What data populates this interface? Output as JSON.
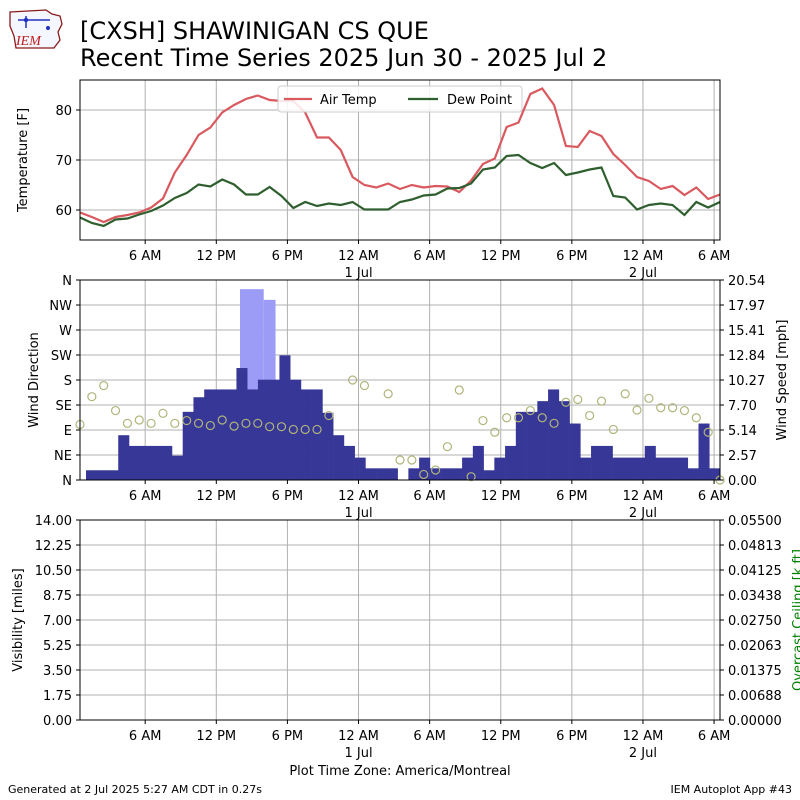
{
  "header": {
    "title_line1": "[CXSH] SHAWINIGAN CS  QUE",
    "title_line2": "Recent Time Series 2025 Jun 30 - 2025 Jul 2",
    "logo_text": "IEM"
  },
  "footer": {
    "left": "Generated at 2 Jul 2025 5:27 AM CDT in 0.27s",
    "right": "IEM Autoplot App #43",
    "timezone": "Plot Time Zone: America/Montreal"
  },
  "colors": {
    "air_temp": "#d9595f",
    "dew_point": "#2f5f2f",
    "wind_speed": "#373797",
    "gust": "#9c9cf6",
    "wind_dir": "#b0b47a",
    "ceiling_label": "#008000",
    "grid": "#b0b0b0"
  },
  "chart_data": [
    {
      "type": "line",
      "ylabel": "Temperature [F]",
      "ylim": [
        54,
        86
      ],
      "yticks": [
        60,
        70,
        80
      ],
      "x_unit": "hours since 2025-06-30 00:00 local",
      "xlim": [
        0.5,
        54.5
      ],
      "x_tick_hours": [
        6,
        12,
        18,
        24,
        30,
        36,
        42,
        48,
        54
      ],
      "x_tick_labels": [
        "6 AM",
        "12 PM",
        "6 PM",
        "12 AM",
        "6 AM",
        "12 PM",
        "6 PM",
        "12 AM",
        "6 AM"
      ],
      "date_labels": [
        {
          "hour": 24,
          "label": "1 Jul"
        },
        {
          "hour": 48,
          "label": "2 Jul"
        }
      ],
      "legend_placement": "top-center",
      "grid": true,
      "series": [
        {
          "name": "Air Temp",
          "points": [
            [
              0.5,
              59.5
            ],
            [
              1.5,
              58.6
            ],
            [
              2.5,
              57.6
            ],
            [
              3.5,
              58.6
            ],
            [
              4.5,
              59
            ],
            [
              5.5,
              59.5
            ],
            [
              6.5,
              60.5
            ],
            [
              7.5,
              62.3
            ],
            [
              8.5,
              67.5
            ],
            [
              9.5,
              71
            ],
            [
              10.5,
              75
            ],
            [
              11.5,
              76.5
            ],
            [
              12.5,
              79.5
            ],
            [
              13.5,
              81
            ],
            [
              14.5,
              82.2
            ],
            [
              15.5,
              82.9
            ],
            [
              16.5,
              82
            ],
            [
              17.5,
              81.8
            ],
            [
              18.5,
              81.8
            ],
            [
              19.5,
              79.5
            ],
            [
              20.5,
              74.5
            ],
            [
              21.5,
              74.5
            ],
            [
              22.5,
              72
            ],
            [
              23.5,
              66.6
            ],
            [
              24.5,
              65
            ],
            [
              25.5,
              64.5
            ],
            [
              26.5,
              65.3
            ],
            [
              27.5,
              64.2
            ],
            [
              28.5,
              65
            ],
            [
              29.5,
              64.5
            ],
            [
              30.5,
              64.8
            ],
            [
              31.5,
              64.7
            ],
            [
              32.5,
              63.6
            ],
            [
              33.5,
              65.9
            ],
            [
              34.5,
              69.2
            ],
            [
              35.5,
              70.3
            ],
            [
              36.5,
              76.6
            ],
            [
              37.5,
              77.5
            ],
            [
              38.5,
              83.2
            ],
            [
              39.5,
              84.3
            ],
            [
              40.5,
              81
            ],
            [
              41.5,
              72.8
            ],
            [
              42.5,
              72.6
            ],
            [
              43.5,
              75.8
            ],
            [
              44.5,
              74.8
            ],
            [
              45.5,
              71.2
            ],
            [
              46.5,
              69
            ],
            [
              47.5,
              66.6
            ],
            [
              48.5,
              65.8
            ],
            [
              49.5,
              64.2
            ],
            [
              50.5,
              64.8
            ],
            [
              51.5,
              63
            ],
            [
              52.5,
              64.5
            ],
            [
              53.5,
              62.2
            ],
            [
              54.5,
              63.1
            ]
          ]
        },
        {
          "name": "Dew Point",
          "points": [
            [
              0.5,
              58.5
            ],
            [
              1.5,
              57.4
            ],
            [
              2.5,
              56.8
            ],
            [
              3.5,
              58.1
            ],
            [
              4.5,
              58.3
            ],
            [
              5.5,
              59.1
            ],
            [
              6.5,
              59.8
            ],
            [
              7.5,
              60.9
            ],
            [
              8.5,
              62.4
            ],
            [
              9.5,
              63.4
            ],
            [
              10.5,
              65.1
            ],
            [
              11.5,
              64.7
            ],
            [
              12.5,
              66.1
            ],
            [
              13.5,
              65.1
            ],
            [
              14.5,
              63.1
            ],
            [
              15.5,
              63.1
            ],
            [
              16.5,
              64.6
            ],
            [
              17.5,
              62.8
            ],
            [
              18.5,
              60.4
            ],
            [
              19.5,
              61.6
            ],
            [
              20.5,
              60.8
            ],
            [
              21.5,
              61.3
            ],
            [
              22.5,
              61
            ],
            [
              23.5,
              61.6
            ],
            [
              24.5,
              60.1
            ],
            [
              25.5,
              60.1
            ],
            [
              26.5,
              60.1
            ],
            [
              27.5,
              61.6
            ],
            [
              28.5,
              62.1
            ],
            [
              29.5,
              62.9
            ],
            [
              30.5,
              63.1
            ],
            [
              31.5,
              64.3
            ],
            [
              32.5,
              64.4
            ],
            [
              33.5,
              65.3
            ],
            [
              34.5,
              68.1
            ],
            [
              35.5,
              68.5
            ],
            [
              36.5,
              70.8
            ],
            [
              37.5,
              71
            ],
            [
              38.5,
              69.4
            ],
            [
              39.5,
              68.4
            ],
            [
              40.5,
              69.4
            ],
            [
              41.5,
              67
            ],
            [
              42.5,
              67.5
            ],
            [
              43.5,
              68.1
            ],
            [
              44.5,
              68.5
            ],
            [
              45.5,
              62.8
            ],
            [
              46.5,
              62.5
            ],
            [
              47.5,
              60.1
            ],
            [
              48.5,
              61
            ],
            [
              49.5,
              61.3
            ],
            [
              50.5,
              61
            ],
            [
              51.5,
              59
            ],
            [
              52.5,
              61.6
            ],
            [
              53.5,
              60.5
            ],
            [
              54.5,
              61.6
            ]
          ]
        }
      ]
    },
    {
      "type": "bar",
      "ylabel": "Wind Direction",
      "y2label": "Wind Speed [mph]",
      "dir_ticks": [
        "N",
        "NE",
        "E",
        "SE",
        "S",
        "SW",
        "W",
        "NW",
        "N"
      ],
      "dir_ylim": [
        0,
        360
      ],
      "speed_ylim": [
        0,
        20.54
      ],
      "speed_ticks": [
        "0.00",
        "2.57",
        "5.14",
        "7.70",
        "10.27",
        "12.84",
        "15.41",
        "17.97",
        "20.54"
      ],
      "x_unit": "hours since 2025-06-30 00:00 local",
      "xlim": [
        0.5,
        54.5
      ],
      "x_tick_hours": [
        6,
        12,
        18,
        24,
        30,
        36,
        42,
        48,
        54
      ],
      "x_tick_labels": [
        "6 AM",
        "12 PM",
        "6 PM",
        "12 AM",
        "6 AM",
        "12 PM",
        "6 PM",
        "12 AM",
        "6 AM"
      ],
      "date_labels": [
        {
          "hour": 24,
          "label": "1 Jul"
        },
        {
          "hour": 48,
          "label": "2 Jul"
        }
      ],
      "grid": true,
      "series": [
        {
          "name": "Wind Speed",
          "values_mph": [
            1.0,
            1.0,
            1.0,
            4.6,
            3.5,
            3.5,
            3.5,
            3.5,
            2.5,
            7.0,
            8.5,
            9.3,
            9.3,
            9.3,
            11.5,
            9.3,
            10.3,
            10.3,
            12.8,
            10.3,
            9.3,
            9.3,
            6.9,
            4.6,
            3.5,
            2.3,
            1.2,
            1.2,
            1.2,
            0.0,
            1.2,
            2.3,
            1.2,
            1.2,
            1.2,
            2.3,
            3.5,
            1.0,
            2.3,
            3.5,
            7.0,
            7.0,
            8.1,
            9.3,
            8.1,
            5.8,
            2.3,
            3.5,
            3.5,
            2.3,
            2.3,
            2.3,
            3.5,
            2.3,
            2.3,
            2.3,
            1.2,
            5.8,
            1.2
          ]
        },
        {
          "name": "Gust",
          "gusts": [
            {
              "hour_start": 14,
              "hour_end": 16,
              "mph": 19.6
            },
            {
              "hour_start": 16,
              "hour_end": 17,
              "mph": 18.5
            }
          ]
        },
        {
          "name": "Wind Direction",
          "points": [
            [
              0.5,
              100
            ],
            [
              1.5,
              150
            ],
            [
              2.5,
              170
            ],
            [
              3.5,
              125
            ],
            [
              4.5,
              102
            ],
            [
              5.5,
              108
            ],
            [
              6.5,
              102
            ],
            [
              7.5,
              120
            ],
            [
              8.5,
              102
            ],
            [
              9.5,
              107
            ],
            [
              10.5,
              102
            ],
            [
              11.5,
              98
            ],
            [
              12.5,
              108
            ],
            [
              13.5,
              97
            ],
            [
              14.5,
              102
            ],
            [
              15.5,
              102
            ],
            [
              16.5,
              96
            ],
            [
              17.5,
              96
            ],
            [
              18.5,
              91
            ],
            [
              19.5,
              91
            ],
            [
              20.5,
              91
            ],
            [
              21.5,
              116
            ],
            [
              23.5,
              180
            ],
            [
              24.5,
              170
            ],
            [
              26.5,
              155
            ],
            [
              27.5,
              36
            ],
            [
              28.5,
              36
            ],
            [
              29.5,
              10
            ],
            [
              30.5,
              18
            ],
            [
              31.5,
              60
            ],
            [
              32.5,
              162
            ],
            [
              33.5,
              6
            ],
            [
              34.5,
              107
            ],
            [
              35.5,
              86
            ],
            [
              36.5,
              112
            ],
            [
              37.5,
              112
            ],
            [
              38.5,
              125
            ],
            [
              39.5,
              112
            ],
            [
              40.5,
              102
            ],
            [
              41.5,
              140
            ],
            [
              42.5,
              145
            ],
            [
              43.5,
              116
            ],
            [
              44.5,
              142
            ],
            [
              45.5,
              91
            ],
            [
              46.5,
              155
            ],
            [
              47.5,
              126
            ],
            [
              48.5,
              147
            ],
            [
              49.5,
              130
            ],
            [
              50.5,
              130
            ],
            [
              51.5,
              125
            ],
            [
              52.5,
              112
            ],
            [
              53.5,
              86
            ],
            [
              54.5,
              0
            ]
          ]
        }
      ]
    },
    {
      "type": "line",
      "ylabel": "Visibility [miles]",
      "y2label": "Overcast Ceiling [k ft]",
      "ylim": [
        0,
        14
      ],
      "yticks": [
        "0.00",
        "1.75",
        "3.50",
        "5.25",
        "7.00",
        "8.75",
        "10.50",
        "12.25",
        "14.00"
      ],
      "y2lim": [
        0,
        0.055
      ],
      "y2ticks": [
        "0.00000",
        "0.00688",
        "0.01375",
        "0.02063",
        "0.02750",
        "0.03438",
        "0.04125",
        "0.04813",
        "0.05500"
      ],
      "x_unit": "hours since 2025-06-30 00:00 local",
      "xlim": [
        0.5,
        54.5
      ],
      "x_tick_hours": [
        6,
        12,
        18,
        24,
        30,
        36,
        42,
        48,
        54
      ],
      "x_tick_labels": [
        "6 AM",
        "12 PM",
        "6 PM",
        "12 AM",
        "6 AM",
        "12 PM",
        "6 PM",
        "12 AM",
        "6 AM"
      ],
      "date_labels": [
        {
          "hour": 24,
          "label": "1 Jul"
        },
        {
          "hour": 48,
          "label": "2 Jul"
        }
      ],
      "grid": true,
      "series": []
    }
  ]
}
